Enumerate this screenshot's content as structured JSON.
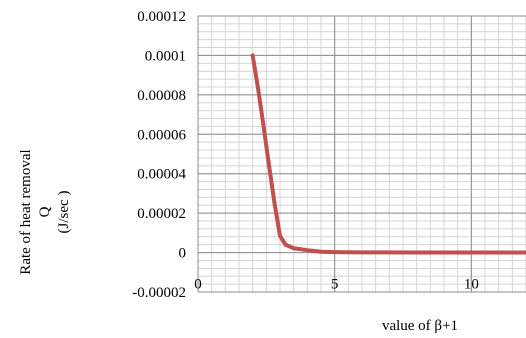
{
  "chart_data": {
    "type": "line",
    "title": "",
    "xlabel": "value of β+1",
    "ylabel_lines": [
      "Rate of  heat  removal",
      "Q",
      "(J/sec )"
    ],
    "xlim": [
      0,
      12
    ],
    "ylim": [
      -2e-05,
      0.00012
    ],
    "y_tick_labels": [
      "0.00012",
      "0.0001",
      "0.00008",
      "0.00006",
      "0.00004",
      "0.00002",
      "0",
      "-0.00002"
    ],
    "y_tick_values": [
      0.00012,
      0.0001,
      8e-05,
      6e-05,
      4e-05,
      2e-05,
      0,
      -2e-05
    ],
    "x_tick_labels": [
      "0",
      "5",
      "10"
    ],
    "x_tick_values": [
      0,
      5,
      10
    ],
    "grid": true,
    "minor_grid": true,
    "legend": "none",
    "line_color": "#c0504d",
    "series": [
      {
        "values_x": [
          2,
          2.2,
          2.4,
          2.6,
          2.8,
          3.0,
          3.2,
          3.5,
          4.0,
          4.5,
          5,
          6,
          8,
          10,
          12
        ],
        "values_y": [
          0.0001,
          8.3e-05,
          6.4e-05,
          4.4e-05,
          2.5e-05,
          8.5e-06,
          4e-06,
          2.2e-06,
          1.2e-06,
          4e-07,
          2e-07,
          1e-07,
          5e-08,
          2e-08,
          1e-08
        ]
      }
    ]
  }
}
